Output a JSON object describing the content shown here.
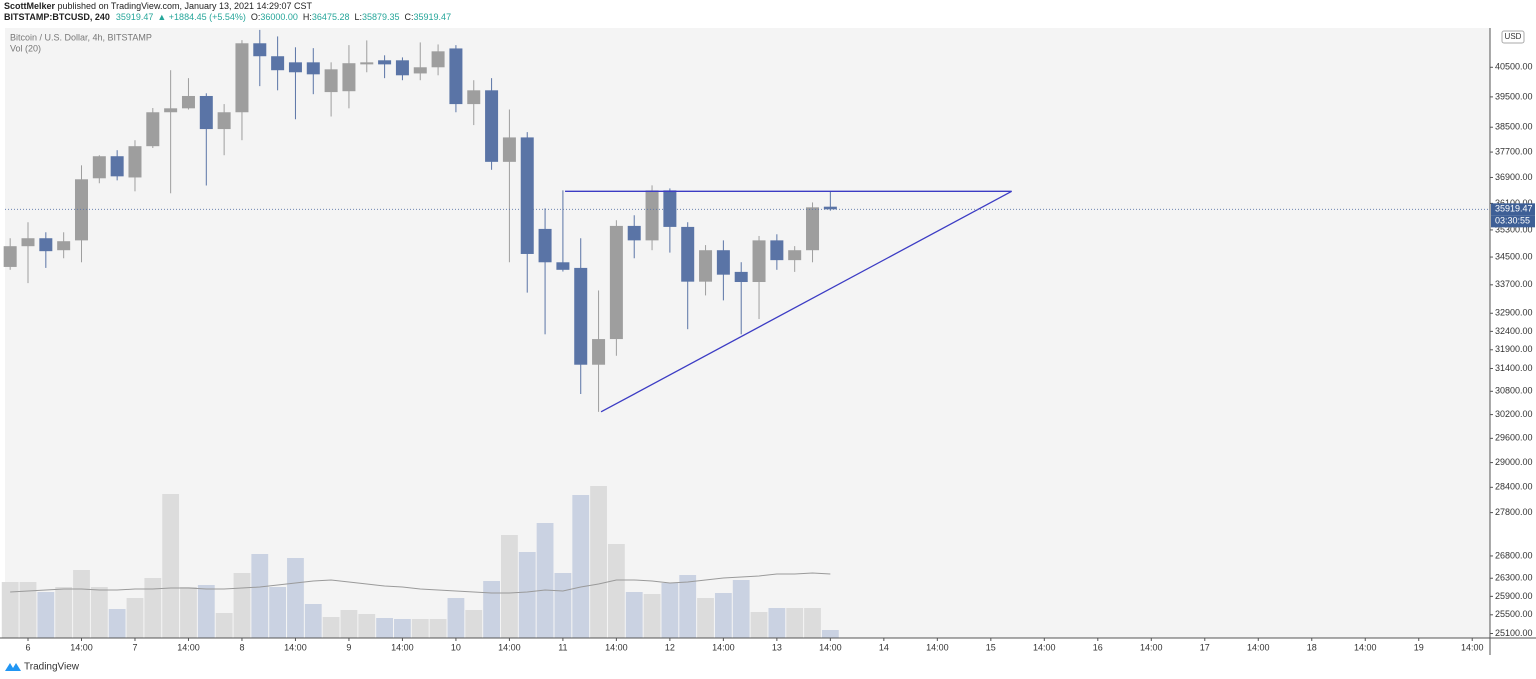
{
  "chart_data": {
    "type": "candlestick",
    "author": "ScottMelker",
    "published": " published on TradingView.com, January 13, 2021 14:29:07 CST",
    "symbol": "BITSTAMP:BTCUSD, 240",
    "last": "35919.47",
    "change": "▲ +1884.45 (+5.54%)",
    "ohlc_header": [
      {
        "label": "O:",
        "value": "36000.00"
      },
      {
        "label": "H:",
        "value": "36475.28"
      },
      {
        "label": "L:",
        "value": "35879.35"
      },
      {
        "label": "C:",
        "value": "35919.47"
      }
    ],
    "title": "Bitcoin / U.S. Dollar, 4h, BITSTAMP",
    "volume_title": "Vol (20)",
    "currency": "USD",
    "price_label": "35919.47",
    "countdown": "03:30:55",
    "footer": "TradingView",
    "log_scale": true,
    "up_color": "#9e9e9e",
    "down_color": "#5a74a6",
    "volume_up_color": "#dcdcdc",
    "volume_down_color": "#cad2e2",
    "ma_color": "#9a9a9a",
    "trendline_color": "#3c3cc4",
    "categories": [
      null,
      "6",
      null,
      null,
      "14:00",
      null,
      null,
      "7",
      null,
      null,
      "14:00",
      null,
      null,
      "8",
      null,
      null,
      "14:00",
      null,
      null,
      "9",
      null,
      null,
      "14:00",
      null,
      null,
      "10",
      null,
      null,
      "14:00",
      null,
      null,
      "11",
      null,
      null,
      "14:00",
      null,
      null,
      "12",
      null,
      null,
      "14:00",
      null,
      null,
      "13",
      null,
      null,
      "14:00",
      null,
      null,
      "14",
      null,
      null,
      "14:00",
      null,
      null,
      "15",
      null,
      null,
      "14:00",
      null,
      null,
      "16",
      null,
      null,
      "14:00",
      null,
      null,
      "17",
      null,
      null,
      "14:00",
      null,
      null,
      "18",
      null,
      null,
      "14:00",
      null,
      null,
      "19",
      null,
      null,
      "14:00"
    ],
    "open": [
      34213,
      34818,
      35053,
      34700,
      34990,
      36874,
      37568,
      36900,
      37888,
      38990,
      39120,
      39530,
      38440,
      38990,
      41330,
      40880,
      40670,
      40670,
      39660,
      39690,
      40600,
      40740,
      40740,
      40290,
      40500,
      41150,
      39260,
      39720,
      37390,
      38170,
      35330,
      34348,
      34185,
      31500,
      32190,
      35420,
      34990,
      36500,
      35390,
      33790,
      34700,
      34070,
      33780,
      34990,
      34410,
      34700,
      36000,
      null,
      null,
      null,
      null,
      null,
      null,
      null,
      null,
      null,
      null,
      null,
      null,
      null,
      null,
      null,
      null,
      null,
      null,
      null,
      null,
      null,
      null,
      null,
      null,
      null,
      null,
      null,
      null,
      null,
      null,
      null,
      null,
      null,
      null,
      null,
      null
    ],
    "high": [
      35053,
      35530,
      35230,
      35230,
      37280,
      37600,
      37760,
      38080,
      39130,
      40400,
      40130,
      39620,
      39260,
      41440,
      41800,
      41570,
      41190,
      41160,
      40670,
      41265,
      41430,
      40912,
      40840,
      41360,
      41290,
      41265,
      40060,
      40130,
      39080,
      38340,
      35950,
      36500,
      35053,
      33540,
      35590,
      35740,
      36655,
      36560,
      35530,
      34850,
      34990,
      34350,
      35120,
      35170,
      34820,
      36130,
      36475.28,
      null,
      null,
      null,
      null,
      null,
      null,
      null,
      null,
      null,
      null,
      null,
      null,
      null,
      null,
      null,
      null,
      null,
      null,
      null,
      null,
      null,
      null,
      null,
      null,
      null,
      null,
      null,
      null,
      null,
      null,
      null,
      null,
      null,
      null,
      null,
      null
    ],
    "low": [
      34130,
      33750,
      34185,
      34465,
      34348,
      36720,
      36810,
      36470,
      37830,
      36410,
      39080,
      36650,
      37600,
      38080,
      39860,
      39720,
      38760,
      39590,
      38850,
      39120,
      40330,
      40130,
      40060,
      40060,
      40227,
      38990,
      38570,
      37140,
      34348,
      33480,
      32320,
      34080,
      30730,
      30270,
      31740,
      34465,
      34700,
      34630,
      32460,
      33400,
      33260,
      32320,
      32740,
      34130,
      34070,
      34348,
      35879.35,
      null,
      null,
      null,
      null,
      null,
      null,
      null,
      null,
      null,
      null,
      null,
      null,
      null,
      null,
      null,
      null,
      null,
      null,
      null,
      null,
      null,
      null,
      null,
      null,
      null,
      null,
      null,
      null,
      null,
      null,
      null,
      null,
      null,
      null,
      null,
      null
    ],
    "close": [
      34818,
      35053,
      34672,
      34965,
      36843,
      37568,
      36935,
      37888,
      38990,
      39120,
      39530,
      38440,
      38990,
      41330,
      40880,
      40400,
      40330,
      40260,
      40430,
      40640,
      40670,
      40600,
      40227,
      40500,
      41050,
      39260,
      39720,
      37390,
      38170,
      34590,
      34348,
      34130,
      31500,
      32190,
      35420,
      34990,
      36500,
      35390,
      33790,
      34700,
      33990,
      33780,
      34990,
      34410,
      34700,
      35980,
      35919.47,
      null,
      null,
      null,
      null,
      null,
      null,
      null,
      null,
      null,
      null,
      null,
      null,
      null,
      null,
      null,
      null,
      null,
      null,
      null,
      null,
      null,
      null,
      null,
      null,
      null,
      null,
      null,
      null,
      null,
      null,
      null,
      null,
      null,
      null,
      null,
      null
    ],
    "volume": [
      56,
      56,
      46,
      51,
      68,
      51,
      29,
      40,
      60,
      144,
      51,
      53,
      25,
      65,
      84,
      51,
      80,
      34,
      21,
      28,
      24,
      20,
      19,
      19,
      19,
      40,
      28,
      57,
      103,
      86,
      115,
      65,
      143,
      152,
      94,
      46,
      44,
      55,
      63,
      40,
      45,
      58,
      26,
      30,
      30,
      30,
      8,
      null,
      null,
      null,
      null,
      null,
      null,
      null,
      null,
      null,
      null,
      null,
      null,
      null,
      null,
      null,
      null,
      null,
      null,
      null,
      null,
      null,
      null,
      null,
      null,
      null,
      null,
      null,
      null,
      null,
      null,
      null,
      null,
      null,
      null,
      null,
      null
    ],
    "volume_ma": [
      46,
      47,
      48,
      49,
      49,
      48,
      48,
      49,
      49,
      50,
      50,
      49,
      49,
      50,
      51,
      53,
      55,
      57,
      58,
      56,
      54,
      52,
      51,
      49,
      48,
      47,
      46,
      45,
      45,
      46,
      48,
      47,
      51,
      54,
      58,
      58,
      57,
      55,
      56,
      58,
      60,
      61,
      62,
      64,
      64,
      65,
      64,
      null,
      null,
      null,
      null,
      null,
      null,
      null,
      null,
      null,
      null,
      null,
      null,
      null,
      null,
      null,
      null,
      null,
      null,
      null,
      null,
      null,
      null,
      null,
      null,
      null,
      null,
      null,
      null,
      null,
      null,
      null,
      null,
      null,
      null,
      null,
      null
    ],
    "trendlines": [
      {
        "x": [
          31.12,
          56.17
        ],
        "y": [
          36470,
          36470
        ]
      },
      {
        "x": [
          33.14,
          56.17
        ],
        "y": [
          30270,
          36470
        ]
      }
    ],
    "ylim": [
      25005,
      41867
    ],
    "y2lim": [
      0,
      610
    ],
    "yticks": [
      {
        "value": 40500,
        "label": "40500.00"
      },
      {
        "value": 39500,
        "label": "39500.00"
      },
      {
        "value": 38500,
        "label": "38500.00"
      },
      {
        "value": 37700,
        "label": "37700.00"
      },
      {
        "value": 36900,
        "label": "36900.00"
      },
      {
        "value": 36100,
        "label": "36100.00"
      },
      {
        "value": 35300,
        "label": "35300.00"
      },
      {
        "value": 34500,
        "label": "34500.00"
      },
      {
        "value": 33700,
        "label": "33700.00"
      },
      {
        "value": 32900,
        "label": "32900.00"
      },
      {
        "value": 32400,
        "label": "32400.00"
      },
      {
        "value": 31900,
        "label": "31900.00"
      },
      {
        "value": 31400,
        "label": "31400.00"
      },
      {
        "value": 30800,
        "label": "30800.00"
      },
      {
        "value": 30200,
        "label": "30200.00"
      },
      {
        "value": 29600,
        "label": "29600.00"
      },
      {
        "value": 29000,
        "label": "29000.00"
      },
      {
        "value": 28400,
        "label": "28400.00"
      },
      {
        "value": 27800,
        "label": "27800.00"
      },
      {
        "value": 26800,
        "label": "26800.00"
      },
      {
        "value": 26300,
        "label": "26300.00"
      },
      {
        "value": 25900,
        "label": "25900.00"
      },
      {
        "value": 25500,
        "label": "25500.00"
      },
      {
        "value": 25100,
        "label": "25100.00"
      }
    ]
  }
}
